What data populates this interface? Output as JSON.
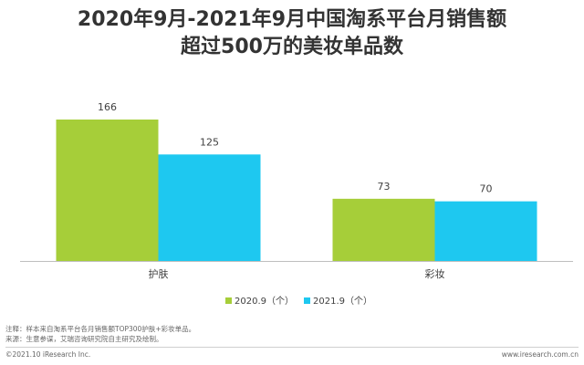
{
  "header": {
    "title_line_1": "2020年9月-2021年9月中国淘系平台月销售额",
    "title_line_2": "超过500万的美妆单品数"
  },
  "chart_data": {
    "type": "bar",
    "title": "2020年9月-2021年9月中国淘系平台月销售额超过500万的美妆单品数",
    "categories": [
      "护肤",
      "彩妆"
    ],
    "series": [
      {
        "name": "2020.9（个）",
        "values": [
          166,
          73
        ],
        "color": "#a6ce39"
      },
      {
        "name": "2021.9（个）",
        "values": [
          125,
          70
        ],
        "color": "#1ec8f0"
      }
    ],
    "ylim": [
      0,
      166
    ],
    "grid": false,
    "legend": "bottom-center",
    "data_labels": true
  },
  "footer": {
    "note": "注释：样本来自淘系平台各月销售额TOP300护肤+彩妆单品。",
    "source": "来源：生意参谋，艾瑞咨询研究院自主研究及绘制。",
    "copyright": "©2021.10 iResearch Inc.",
    "website": "www.iresearch.com.cn"
  }
}
